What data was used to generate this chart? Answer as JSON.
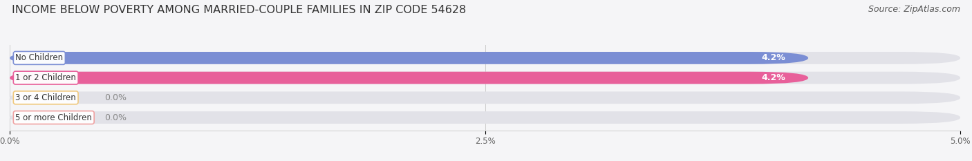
{
  "title": "INCOME BELOW POVERTY AMONG MARRIED-COUPLE FAMILIES IN ZIP CODE 54628",
  "source": "Source: ZipAtlas.com",
  "categories": [
    "No Children",
    "1 or 2 Children",
    "3 or 4 Children",
    "5 or more Children"
  ],
  "values": [
    4.2,
    4.2,
    0.0,
    0.0
  ],
  "bar_colors": [
    "#7b8ed4",
    "#e8609a",
    "#f0c87a",
    "#f0a0a0"
  ],
  "bar_bg_color": "#e2e2e8",
  "xlim": [
    0,
    5.0
  ],
  "xticks": [
    0.0,
    2.5,
    5.0
  ],
  "xtick_labels": [
    "0.0%",
    "2.5%",
    "5.0%"
  ],
  "value_labels": [
    "4.2%",
    "4.2%",
    "0.0%",
    "0.0%"
  ],
  "background_color": "#f5f5f7",
  "title_fontsize": 11.5,
  "source_fontsize": 9,
  "bar_height": 0.62,
  "bar_label_fontsize": 9,
  "category_fontsize": 8.5
}
